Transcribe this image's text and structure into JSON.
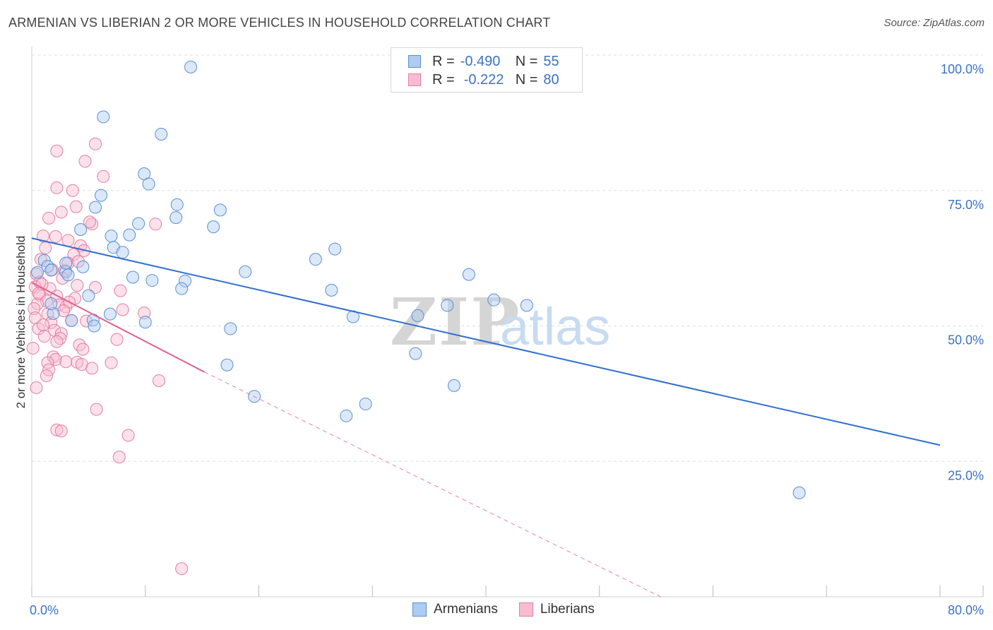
{
  "title": "ARMENIAN VS LIBERIAN 2 OR MORE VEHICLES IN HOUSEHOLD CORRELATION CHART",
  "source": "Source: ZipAtlas.com",
  "watermark": {
    "zip": "ZIP",
    "atlas": "atlas"
  },
  "legend": {
    "r_label": "R =",
    "n_label": "N =",
    "rows": [
      {
        "r": "-0.490",
        "n": "55",
        "fill": "#aecbf0",
        "stroke": "#5b8fd6"
      },
      {
        "r": "-0.222",
        "n": "80",
        "fill": "#f7bcd0",
        "stroke": "#e57ea0"
      }
    ]
  },
  "series_names": {
    "a": "Armenians",
    "b": "Liberians"
  },
  "colors": {
    "blue_fill": "#aecbf0",
    "blue_stroke": "#5b8fd6",
    "blue_line": "#2f6fd1",
    "pink_fill": "#f7bcd0",
    "pink_stroke": "#e57ea0",
    "pink_line": "#e2608e",
    "tick_label": "#3b72c4",
    "grid": "#dddddd"
  },
  "chart_data": {
    "type": "scatter",
    "title": "ARMENIAN VS LIBERIAN 2 OR MORE VEHICLES IN HOUSEHOLD CORRELATION CHART",
    "xlabel": "",
    "ylabel": "2 or more Vehicles in Household",
    "xlim": [
      0,
      80
    ],
    "ylim": [
      0,
      100
    ],
    "x_tick_labels": [
      "0.0%",
      "80.0%"
    ],
    "y_ticks": [
      25,
      50,
      75,
      100
    ],
    "y_tick_labels": [
      "25.0%",
      "50.0%",
      "75.0%",
      "100.0%"
    ],
    "grid": true,
    "series": [
      {
        "name": "Armenians",
        "r": -0.49,
        "n": 55,
        "trend": {
          "x": [
            0,
            80
          ],
          "y": [
            66.2,
            28.0
          ],
          "style": "solid"
        },
        "points": [
          [
            14.0,
            97.8
          ],
          [
            6.3,
            88.6
          ],
          [
            11.4,
            85.4
          ],
          [
            9.9,
            78.1
          ],
          [
            10.3,
            76.2
          ],
          [
            6.1,
            74.1
          ],
          [
            12.8,
            72.4
          ],
          [
            5.6,
            71.9
          ],
          [
            16.6,
            71.4
          ],
          [
            12.7,
            70.0
          ],
          [
            9.4,
            68.9
          ],
          [
            16.0,
            68.3
          ],
          [
            4.3,
            67.8
          ],
          [
            7.0,
            66.6
          ],
          [
            8.6,
            66.8
          ],
          [
            7.2,
            64.5
          ],
          [
            8.0,
            63.6
          ],
          [
            26.7,
            64.2
          ],
          [
            25.0,
            62.3
          ],
          [
            1.1,
            62.1
          ],
          [
            1.4,
            61.0
          ],
          [
            4.5,
            60.9
          ],
          [
            1.7,
            60.3
          ],
          [
            18.8,
            60.0
          ],
          [
            3.0,
            60.0
          ],
          [
            0.5,
            59.9
          ],
          [
            3.2,
            59.4
          ],
          [
            38.5,
            59.5
          ],
          [
            8.9,
            59.0
          ],
          [
            10.6,
            58.4
          ],
          [
            13.5,
            58.3
          ],
          [
            13.2,
            56.9
          ],
          [
            26.4,
            56.6
          ],
          [
            5.0,
            55.6
          ],
          [
            40.7,
            54.8
          ],
          [
            43.6,
            53.8
          ],
          [
            36.6,
            53.8
          ],
          [
            1.9,
            52.3
          ],
          [
            5.4,
            51.1
          ],
          [
            6.9,
            52.2
          ],
          [
            28.3,
            51.7
          ],
          [
            34.0,
            51.9
          ],
          [
            3.5,
            51.0
          ],
          [
            10.0,
            50.7
          ],
          [
            5.5,
            50.0
          ],
          [
            17.5,
            49.5
          ],
          [
            33.8,
            44.9
          ],
          [
            17.2,
            42.8
          ],
          [
            37.2,
            39.0
          ],
          [
            19.6,
            37.0
          ],
          [
            29.4,
            35.6
          ],
          [
            27.7,
            33.4
          ],
          [
            67.6,
            19.2
          ],
          [
            1.7,
            54.1
          ],
          [
            3.0,
            61.6
          ]
        ]
      },
      {
        "name": "Liberians",
        "r": -0.222,
        "n": 80,
        "trend_solid": {
          "x": [
            0,
            15.2
          ],
          "y": [
            58.0,
            41.5
          ],
          "style": "solid"
        },
        "trend_dashed": {
          "x": [
            15.2,
            55.4
          ],
          "y": [
            41.5,
            0
          ],
          "style": "dashed"
        },
        "points": [
          [
            2.2,
            82.3
          ],
          [
            5.6,
            83.6
          ],
          [
            4.7,
            80.4
          ],
          [
            6.3,
            77.6
          ],
          [
            2.2,
            75.5
          ],
          [
            3.6,
            75.0
          ],
          [
            3.9,
            72.0
          ],
          [
            2.6,
            71.0
          ],
          [
            1.5,
            69.9
          ],
          [
            5.3,
            68.8
          ],
          [
            5.1,
            69.2
          ],
          [
            10.9,
            68.8
          ],
          [
            1.0,
            66.6
          ],
          [
            2.1,
            66.5
          ],
          [
            3.2,
            65.8
          ],
          [
            4.3,
            64.8
          ],
          [
            1.2,
            64.4
          ],
          [
            4.6,
            63.9
          ],
          [
            3.7,
            63.2
          ],
          [
            0.8,
            62.3
          ],
          [
            3.2,
            61.6
          ],
          [
            4.1,
            61.9
          ],
          [
            2.9,
            60.2
          ],
          [
            0.4,
            59.6
          ],
          [
            0.7,
            58.1
          ],
          [
            4.0,
            57.5
          ],
          [
            0.3,
            57.2
          ],
          [
            5.6,
            57.1
          ],
          [
            1.6,
            56.9
          ],
          [
            7.8,
            56.5
          ],
          [
            0.7,
            55.7
          ],
          [
            2.2,
            55.5
          ],
          [
            3.8,
            55.1
          ],
          [
            1.3,
            54.6
          ],
          [
            0.5,
            54.1
          ],
          [
            2.4,
            53.9
          ],
          [
            3.0,
            53.5
          ],
          [
            8.0,
            53.0
          ],
          [
            0.2,
            53.2
          ],
          [
            1.4,
            52.2
          ],
          [
            0.3,
            51.5
          ],
          [
            9.9,
            52.4
          ],
          [
            3.5,
            51.0
          ],
          [
            1.7,
            50.6
          ],
          [
            0.6,
            49.5
          ],
          [
            2.0,
            49.2
          ],
          [
            2.6,
            48.6
          ],
          [
            1.1,
            48.1
          ],
          [
            2.5,
            47.7
          ],
          [
            7.5,
            47.5
          ],
          [
            2.2,
            47.1
          ],
          [
            4.2,
            46.5
          ],
          [
            4.5,
            45.7
          ],
          [
            0.1,
            45.9
          ],
          [
            1.9,
            44.3
          ],
          [
            2.1,
            43.8
          ],
          [
            3.0,
            43.4
          ],
          [
            4.0,
            43.3
          ],
          [
            1.4,
            43.2
          ],
          [
            4.4,
            42.9
          ],
          [
            7.0,
            43.2
          ],
          [
            5.3,
            42.2
          ],
          [
            1.5,
            41.9
          ],
          [
            1.3,
            40.8
          ],
          [
            11.2,
            39.9
          ],
          [
            0.4,
            38.6
          ],
          [
            5.7,
            34.6
          ],
          [
            2.2,
            30.8
          ],
          [
            2.6,
            30.6
          ],
          [
            8.5,
            29.8
          ],
          [
            7.7,
            25.8
          ],
          [
            13.2,
            5.2
          ],
          [
            0.9,
            57.7
          ],
          [
            2.7,
            58.8
          ],
          [
            1.8,
            60.4
          ],
          [
            0.6,
            56.0
          ],
          [
            3.3,
            54.4
          ],
          [
            4.8,
            50.9
          ],
          [
            2.8,
            52.8
          ],
          [
            1.0,
            50.2
          ]
        ]
      }
    ]
  }
}
